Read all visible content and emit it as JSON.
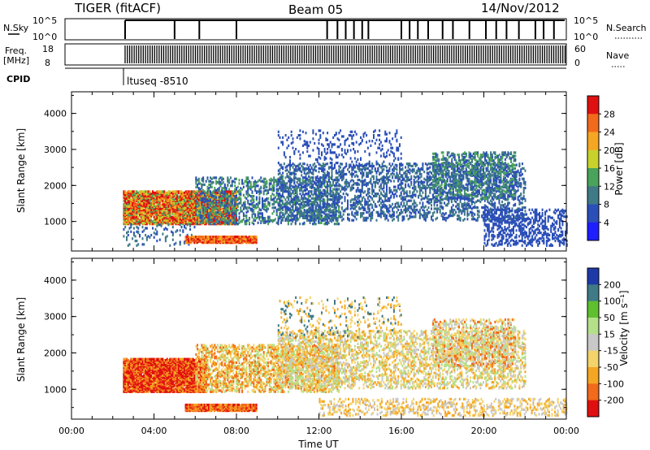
{
  "header": {
    "radar": "TIGER (fitACF)",
    "beam": "Beam 05",
    "date": "14/Nov/2012",
    "cpid_label": "CPID",
    "cpid_value": "ltuseq -8510"
  },
  "status_panels": {
    "nsky": {
      "label": "N.Sky",
      "ticks": [
        "10^5",
        "10^0"
      ]
    },
    "nsearch": {
      "label": "N.Search",
      "ticks": [
        "10^5",
        "10^0"
      ]
    },
    "freq": {
      "label_line1": "Freq.",
      "label_line2": "[MHz]",
      "ticks": [
        "18",
        "8"
      ]
    },
    "nave": {
      "label": "Nave",
      "ticks": [
        "60",
        "0"
      ]
    }
  },
  "chart_data": [
    {
      "type": "heatmap",
      "panel": "power",
      "ylabel": "Slant Range [km]",
      "y_ticks": [
        "1000",
        "2000",
        "3000",
        "4000"
      ],
      "xlim_hours": [
        0,
        24
      ],
      "ylim_km": [
        180,
        4600
      ],
      "colorbar": {
        "label": "Power [dB]",
        "ticks": [
          "4",
          "8",
          "12",
          "16",
          "20",
          "24",
          "28"
        ],
        "bins": [
          {
            "value": 0,
            "color": "#1e1eff"
          },
          {
            "value": 4,
            "color": "#2b4fb8"
          },
          {
            "value": 8,
            "color": "#3f7a86"
          },
          {
            "value": 12,
            "color": "#4aa35a"
          },
          {
            "value": 16,
            "color": "#c8d22c"
          },
          {
            "value": 20,
            "color": "#f5a623"
          },
          {
            "value": 24,
            "color": "#f26a1b"
          },
          {
            "value": 28,
            "color": "#e01010"
          }
        ]
      },
      "regions": [
        {
          "t0": 2.5,
          "t1": 8.0,
          "r0": 900,
          "r1": 1800,
          "density": 0.85,
          "values": [
            20,
            24,
            28,
            28,
            16,
            12
          ]
        },
        {
          "t0": 2.5,
          "t1": 6.0,
          "r0": 300,
          "r1": 900,
          "density": 0.12,
          "values": [
            4,
            8
          ]
        },
        {
          "t0": 5.5,
          "t1": 9.0,
          "r0": 380,
          "r1": 560,
          "density": 0.95,
          "values": [
            28,
            24,
            20
          ]
        },
        {
          "t0": 6.0,
          "t1": 13.0,
          "r0": 900,
          "r1": 2200,
          "density": 0.3,
          "values": [
            4,
            8,
            12
          ]
        },
        {
          "t0": 10.0,
          "t1": 22.0,
          "r0": 1000,
          "r1": 2600,
          "density": 0.28,
          "values": [
            4,
            8
          ]
        },
        {
          "t0": 10.0,
          "t1": 16.0,
          "r0": 2400,
          "r1": 3500,
          "density": 0.1,
          "values": [
            4
          ]
        },
        {
          "t0": 17.5,
          "t1": 21.5,
          "r0": 1600,
          "r1": 2900,
          "density": 0.35,
          "values": [
            4,
            8,
            12
          ]
        },
        {
          "t0": 20.0,
          "t1": 24.0,
          "r0": 300,
          "r1": 1300,
          "density": 0.3,
          "values": [
            4
          ]
        }
      ]
    },
    {
      "type": "heatmap",
      "panel": "velocity",
      "xlabel": "Time UT",
      "ylabel": "Slant Range [km]",
      "x_ticks": [
        "00:00",
        "04:00",
        "08:00",
        "12:00",
        "16:00",
        "20:00",
        "00:00"
      ],
      "y_ticks": [
        "1000",
        "2000",
        "3000",
        "4000"
      ],
      "xlim_hours": [
        0,
        24
      ],
      "ylim_km": [
        180,
        4600
      ],
      "colorbar": {
        "label": "Velocity [m s⁻¹]",
        "ticks": [
          "200",
          "100",
          "50",
          "15",
          "-15",
          "-50",
          "-100",
          "-200"
        ],
        "bins": [
          {
            "value": 250,
            "color": "#1e3aa8"
          },
          {
            "value": 150,
            "color": "#3f7a86"
          },
          {
            "value": 75,
            "color": "#5fbf2e"
          },
          {
            "value": 30,
            "color": "#b4e08a"
          },
          {
            "value": 0,
            "color": "#c8c8c8"
          },
          {
            "value": -30,
            "color": "#f5d36b"
          },
          {
            "value": -75,
            "color": "#f5a623"
          },
          {
            "value": -150,
            "color": "#f26a1b"
          },
          {
            "value": -250,
            "color": "#e01010"
          }
        ]
      },
      "regions": [
        {
          "t0": 2.5,
          "t1": 6.5,
          "r0": 900,
          "r1": 1800,
          "density": 0.9,
          "values": [
            -250,
            -250,
            -150,
            -75
          ]
        },
        {
          "t0": 5.5,
          "t1": 9.0,
          "r0": 380,
          "r1": 560,
          "density": 0.95,
          "values": [
            -150,
            -75,
            -250
          ]
        },
        {
          "t0": 6.0,
          "t1": 13.0,
          "r0": 900,
          "r1": 2200,
          "density": 0.4,
          "values": [
            -30,
            -75,
            30,
            -150
          ]
        },
        {
          "t0": 10.0,
          "t1": 22.0,
          "r0": 1000,
          "r1": 2600,
          "density": 0.3,
          "values": [
            -30,
            0,
            -75,
            30
          ]
        },
        {
          "t0": 10.0,
          "t1": 16.0,
          "r0": 2400,
          "r1": 3500,
          "density": 0.1,
          "values": [
            -30,
            -75,
            150
          ]
        },
        {
          "t0": 17.5,
          "t1": 21.5,
          "r0": 1600,
          "r1": 2900,
          "density": 0.35,
          "values": [
            0,
            -30,
            30,
            -150
          ]
        },
        {
          "t0": 12.0,
          "t1": 24.0,
          "r0": 250,
          "r1": 700,
          "density": 0.25,
          "values": [
            -30,
            -75,
            0
          ]
        }
      ]
    }
  ]
}
